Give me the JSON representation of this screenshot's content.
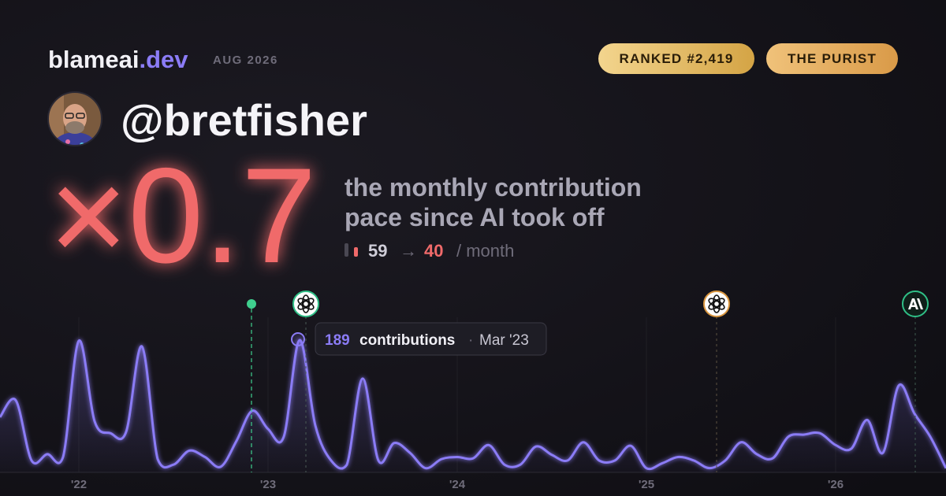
{
  "header": {
    "brand": "blameai",
    "brand_tld": ".dev",
    "period": "AUG 2026",
    "badges": [
      "RANKED #2,419",
      "THE PURIST"
    ]
  },
  "profile": {
    "username": "@bretfisher"
  },
  "headline": {
    "multiplier": "×0.7",
    "caption": [
      "the monthly contribution",
      "pace since AI took off"
    ],
    "before": 59,
    "arrow": "→",
    "after": 40,
    "unit": "/ month"
  },
  "tooltip": {
    "label": "contributions",
    "separator": "·",
    "date": "Mar '23"
  },
  "chart_data": {
    "type": "line",
    "categories": [
      null,
      null,
      null,
      null,
      null,
      "'22",
      null,
      null,
      null,
      null,
      null,
      null,
      null,
      null,
      null,
      null,
      null,
      "'23",
      null,
      null,
      null,
      null,
      null,
      null,
      null,
      null,
      null,
      null,
      null,
      "'24",
      null,
      null,
      null,
      null,
      null,
      null,
      null,
      null,
      null,
      null,
      null,
      "'25",
      null,
      null,
      null,
      null,
      null,
      null,
      null,
      null,
      null,
      null,
      null,
      "'26",
      null,
      null,
      null,
      null,
      null,
      null,
      null
    ],
    "series": [
      {
        "name": "contributions",
        "color": "#8b7cf6",
        "values": [
          79,
          103,
          17,
          26,
          22,
          188,
          73,
          56,
          58,
          180,
          19,
          11,
          31,
          22,
          8,
          45,
          88,
          62,
          51,
          189,
          67,
          17,
          11,
          134,
          17,
          42,
          28,
          6,
          19,
          22,
          20,
          39,
          11,
          11,
          37,
          25,
          17,
          43,
          17,
          17,
          38,
          6,
          13,
          22,
          17,
          6,
          17,
          43,
          26,
          20,
          51,
          54,
          56,
          39,
          34,
          75,
          28,
          124,
          84,
          51,
          6
        ]
      }
    ]
  }
}
